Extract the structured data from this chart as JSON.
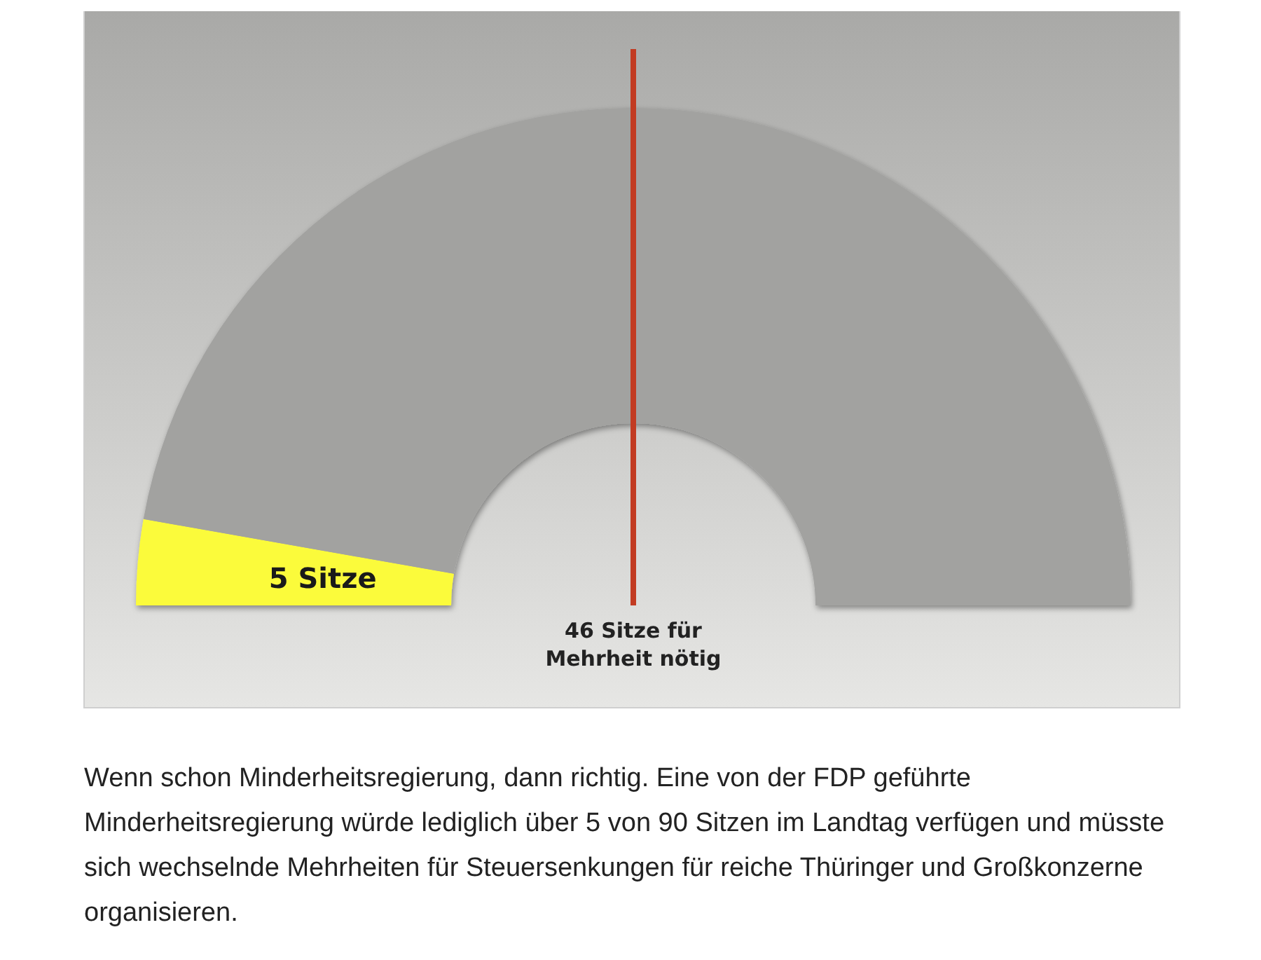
{
  "chart_data": {
    "type": "donut",
    "categories": [
      null,
      null
    ],
    "values": [
      5,
      85
    ],
    "colors": [
      "#fbfb3a",
      "#a2a2a0"
    ],
    "value_labels": [
      "5 Sitze",
      null
    ],
    "ref_lines": [
      {
        "axis": "y",
        "label": "46 Sitze für\nMehrheit nötig",
        "color": "#c23b22"
      }
    ],
    "annotations": [
      "Wenn schon Minderheitsregierung, dann richtig. Eine von der FDP geführte Minderheitsregierung würde lediglich über 5 von 90 Sitzen im Landtag verfügen und müsste sich wechselnde Mehrheiten für Steuersenkungen für reiche Thüringer und Großkonzerne organisieren."
    ]
  }
}
